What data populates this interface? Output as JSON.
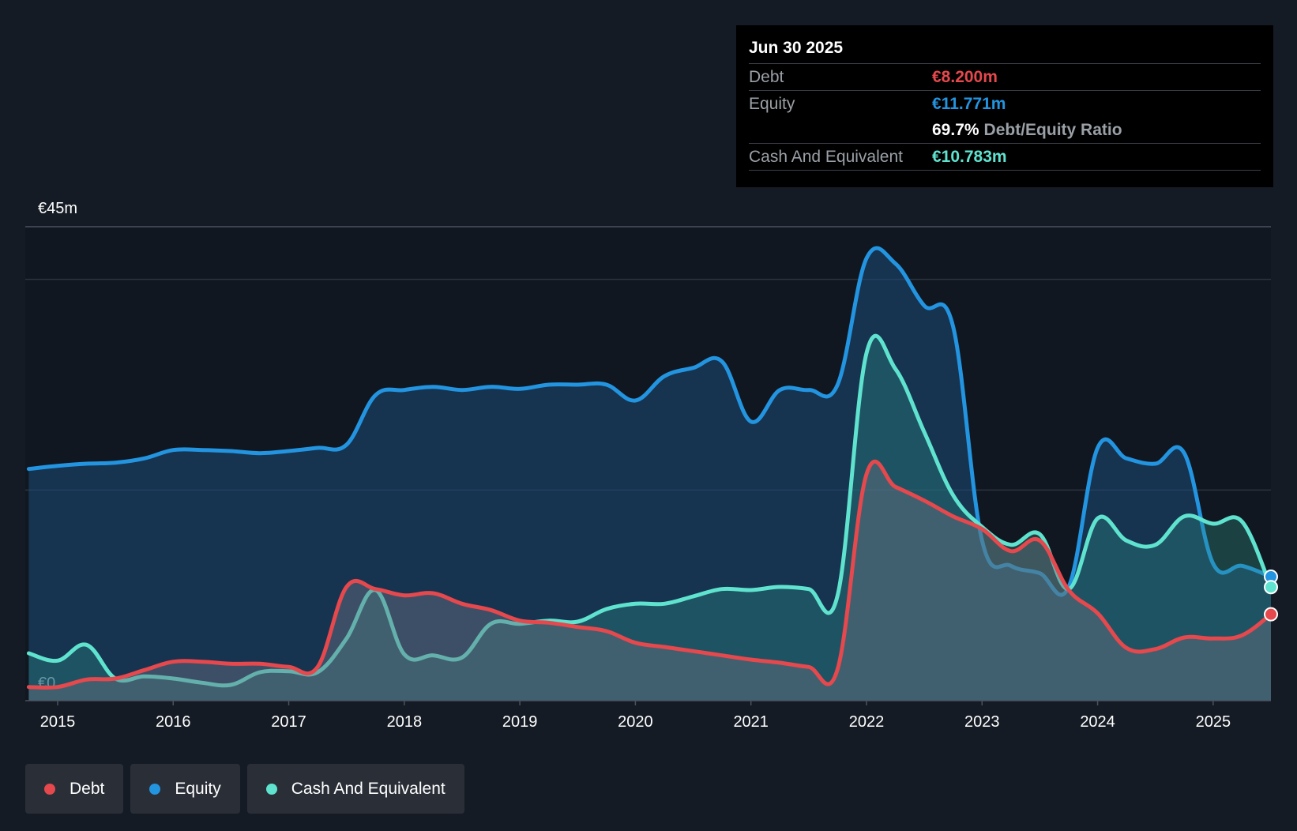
{
  "chart_data": {
    "type": "area",
    "y_axis": {
      "top_label": "€45m",
      "bottom_label": "€0",
      "ylim": [
        0,
        45
      ],
      "unit": "€m"
    },
    "x_ticks": [
      "2015",
      "2016",
      "2017",
      "2018",
      "2019",
      "2020",
      "2021",
      "2022",
      "2023",
      "2024",
      "2025"
    ],
    "xlim": [
      2014.72,
      2025.5
    ],
    "grid": true,
    "legend_position": "bottom-left",
    "series": [
      {
        "name": "Equity",
        "color": "#2394e0",
        "x": [
          2014.75,
          2015.0,
          2015.25,
          2015.5,
          2015.75,
          2016.0,
          2016.25,
          2016.5,
          2016.75,
          2017.0,
          2017.25,
          2017.5,
          2017.75,
          2018.0,
          2018.25,
          2018.5,
          2018.75,
          2019.0,
          2019.25,
          2019.5,
          2019.75,
          2020.0,
          2020.25,
          2020.5,
          2020.75,
          2021.0,
          2021.25,
          2021.5,
          2021.75,
          2022.0,
          2022.25,
          2022.5,
          2022.75,
          2023.0,
          2023.25,
          2023.5,
          2023.75,
          2024.0,
          2024.25,
          2024.5,
          2024.75,
          2025.0,
          2025.25,
          2025.5
        ],
        "y": [
          22.0,
          22.3,
          22.5,
          22.6,
          23.0,
          23.8,
          23.8,
          23.7,
          23.5,
          23.7,
          24.0,
          24.3,
          29.0,
          29.5,
          29.8,
          29.5,
          29.8,
          29.6,
          30.0,
          30.0,
          30.0,
          28.5,
          30.8,
          31.6,
          32.2,
          26.5,
          29.5,
          29.5,
          30.0,
          42.0,
          41.5,
          37.5,
          35.5,
          15.2,
          12.8,
          12.1,
          10.8,
          24.0,
          23.0,
          22.5,
          23.5,
          13.0,
          12.8,
          11.771
        ]
      },
      {
        "name": "Cash And Equivalent",
        "color": "#5fe3cf",
        "x": [
          2014.75,
          2015.0,
          2015.25,
          2015.5,
          2015.75,
          2016.0,
          2016.25,
          2016.5,
          2016.75,
          2017.0,
          2017.25,
          2017.5,
          2017.75,
          2018.0,
          2018.25,
          2018.5,
          2018.75,
          2019.0,
          2019.25,
          2019.5,
          2019.75,
          2020.0,
          2020.25,
          2020.5,
          2020.75,
          2021.0,
          2021.25,
          2021.5,
          2021.75,
          2022.0,
          2022.25,
          2022.5,
          2022.75,
          2023.0,
          2023.25,
          2023.5,
          2023.75,
          2024.0,
          2024.25,
          2024.5,
          2024.75,
          2025.0,
          2025.25,
          2025.5
        ],
        "y": [
          4.5,
          3.8,
          5.3,
          2.1,
          2.3,
          2.1,
          1.7,
          1.5,
          2.7,
          2.8,
          2.7,
          5.9,
          10.5,
          4.4,
          4.3,
          4.1,
          7.3,
          7.3,
          7.6,
          7.5,
          8.7,
          9.2,
          9.2,
          9.9,
          10.6,
          10.5,
          10.8,
          10.6,
          10.0,
          33.0,
          31.5,
          25.5,
          19.5,
          16.5,
          14.8,
          15.8,
          10.6,
          17.3,
          15.2,
          14.8,
          17.5,
          16.8,
          17.0,
          10.783
        ]
      },
      {
        "name": "Debt",
        "color": "#e5484d",
        "x": [
          2014.75,
          2015.0,
          2015.25,
          2015.5,
          2015.75,
          2016.0,
          2016.25,
          2016.5,
          2016.75,
          2017.0,
          2017.25,
          2017.5,
          2017.75,
          2018.0,
          2018.25,
          2018.5,
          2018.75,
          2019.0,
          2019.25,
          2019.5,
          2019.75,
          2020.0,
          2020.25,
          2020.5,
          2020.75,
          2021.0,
          2021.25,
          2021.5,
          2021.75,
          2022.0,
          2022.25,
          2022.5,
          2022.75,
          2023.0,
          2023.25,
          2023.5,
          2023.75,
          2024.0,
          2024.25,
          2024.5,
          2024.75,
          2025.0,
          2025.25,
          2025.5
        ],
        "y": [
          1.3,
          1.3,
          2.0,
          2.1,
          2.9,
          3.7,
          3.7,
          3.5,
          3.5,
          3.2,
          3.2,
          10.8,
          10.6,
          10.0,
          10.2,
          9.2,
          8.6,
          7.6,
          7.4,
          7.0,
          6.6,
          5.5,
          5.1,
          4.7,
          4.3,
          3.9,
          3.6,
          3.2,
          3.0,
          21.5,
          20.3,
          19.0,
          17.5,
          16.3,
          14.2,
          15.2,
          10.5,
          8.3,
          5.0,
          4.9,
          6.0,
          5.9,
          6.2,
          8.2
        ]
      }
    ]
  },
  "tooltip": {
    "date": "Jun 30 2025",
    "debt_label": "Debt",
    "debt_value": "€8.200m",
    "equity_label": "Equity",
    "equity_value": "€11.771m",
    "ratio_value": "69.7%",
    "ratio_label": "Debt/Equity Ratio",
    "cash_label": "Cash And Equivalent",
    "cash_value": "€10.783m"
  },
  "legend": [
    {
      "label": "Debt",
      "color": "#e5484d"
    },
    {
      "label": "Equity",
      "color": "#2394e0"
    },
    {
      "label": "Cash And Equivalent",
      "color": "#5fe3cf"
    }
  ],
  "colors": {
    "background": "#151b24",
    "plot_background": "#111720",
    "debt": "#e5484d",
    "equity": "#2394e0",
    "cash": "#5fe3cf"
  }
}
